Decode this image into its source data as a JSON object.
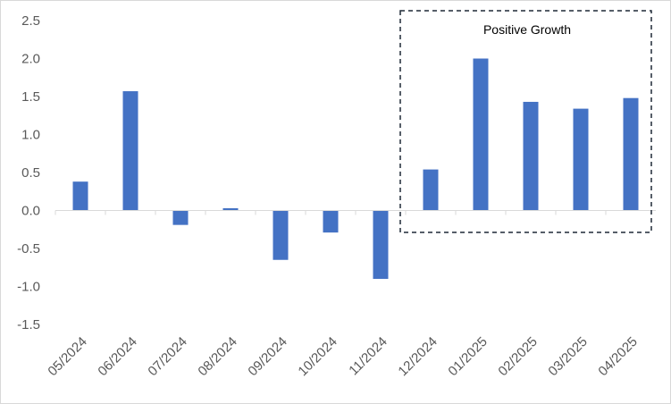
{
  "chart_data": {
    "type": "bar",
    "title": "",
    "xlabel": "",
    "ylabel": "",
    "categories": [
      "05/2024",
      "06/2024",
      "07/2024",
      "08/2024",
      "09/2024",
      "10/2024",
      "11/2024",
      "12/2024",
      "01/2025",
      "02/2025",
      "03/2025",
      "04/2025"
    ],
    "values": [
      0.38,
      1.57,
      -0.19,
      0.03,
      -0.65,
      -0.29,
      -0.9,
      0.54,
      2.0,
      1.43,
      1.34,
      1.48
    ],
    "ylim": [
      -1.5,
      2.5
    ],
    "yticks": [
      "2.5",
      "2.0",
      "1.5",
      "1.0",
      "0.5",
      "0.0",
      "-0.5",
      "-1.0",
      "-1.5"
    ],
    "grid": false,
    "bar_color": "#4472C4",
    "annotation": {
      "text": "Positive Growth",
      "box_from_category": "12/2024",
      "box_to_category": "04/2025",
      "border_color": "#1f2937"
    }
  }
}
